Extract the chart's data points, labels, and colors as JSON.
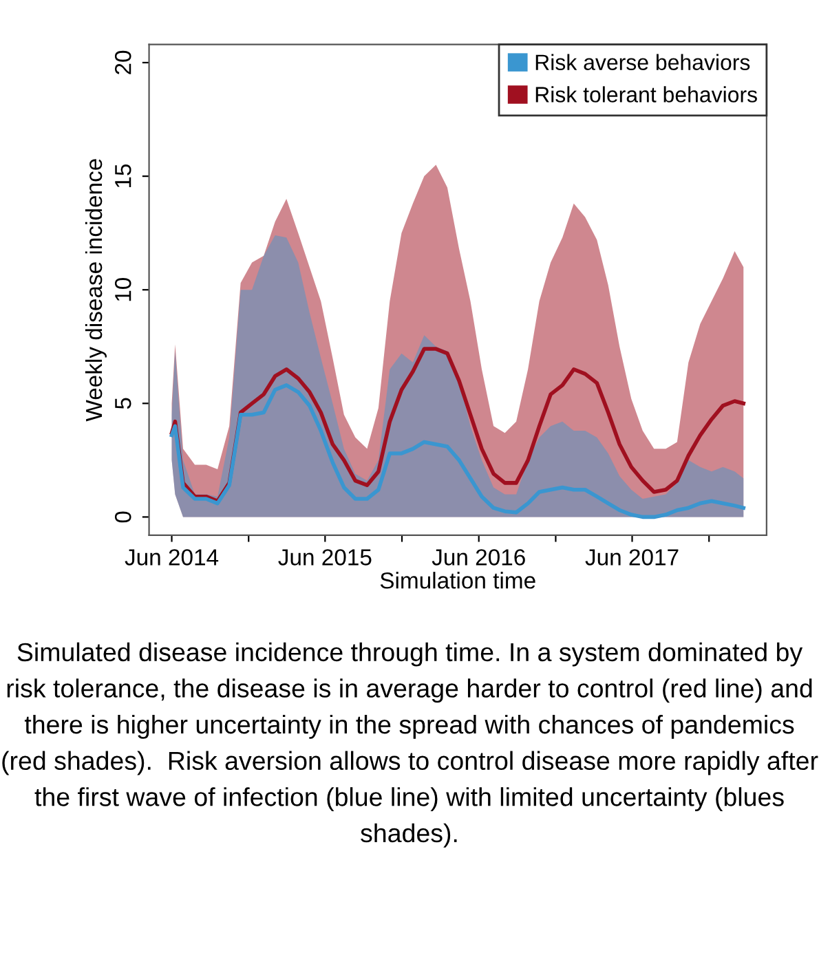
{
  "chart_data": {
    "type": "line",
    "xlabel": "Simulation time",
    "ylabel": "Weekly disease incidence",
    "x": [
      "2014-06-01",
      "2014-06-09",
      "2014-06-28",
      "2014-07-26",
      "2014-08-22",
      "2014-09-18",
      "2014-10-16",
      "2014-11-12",
      "2014-12-09",
      "2015-01-06",
      "2015-02-02",
      "2015-03-01",
      "2015-03-29",
      "2015-04-25",
      "2015-05-22",
      "2015-06-19",
      "2015-07-16",
      "2015-08-12",
      "2015-09-09",
      "2015-10-06",
      "2015-11-02",
      "2015-11-30",
      "2015-12-27",
      "2016-01-23",
      "2016-02-20",
      "2016-03-18",
      "2016-04-15",
      "2016-05-12",
      "2016-06-08",
      "2016-07-06",
      "2016-08-02",
      "2016-08-29",
      "2016-09-26",
      "2016-10-23",
      "2016-11-19",
      "2016-12-17",
      "2017-01-13",
      "2017-02-09",
      "2017-03-09",
      "2017-04-05",
      "2017-05-02",
      "2017-05-30",
      "2017-06-26",
      "2017-07-23",
      "2017-08-20",
      "2017-09-16",
      "2017-10-13",
      "2017-11-10",
      "2017-12-07",
      "2018-01-03",
      "2018-01-31",
      "2018-02-21"
    ],
    "series": [
      {
        "name": "Risk tolerant behaviors",
        "color": "#a01020",
        "values": [
          3.7,
          4.2,
          1.5,
          0.9,
          0.9,
          0.7,
          1.5,
          4.6,
          5.0,
          5.4,
          6.2,
          6.5,
          6.1,
          5.5,
          4.6,
          3.2,
          2.5,
          1.6,
          1.4,
          2.0,
          4.2,
          5.6,
          6.4,
          7.4,
          7.4,
          7.2,
          6.0,
          4.5,
          3.0,
          1.9,
          1.5,
          1.5,
          2.5,
          4.0,
          5.4,
          5.8,
          6.5,
          6.3,
          5.9,
          4.6,
          3.2,
          2.2,
          1.6,
          1.1,
          1.2,
          1.6,
          2.7,
          3.6,
          4.3,
          4.9,
          5.1,
          5.0
        ],
        "lower": [
          2.5,
          1.0,
          0,
          0,
          0,
          0,
          0,
          0,
          0,
          0,
          0,
          0,
          0,
          0,
          0,
          0,
          0,
          0,
          0,
          0,
          0,
          0,
          0,
          0,
          0,
          0,
          0,
          0,
          0,
          0,
          0,
          0,
          0,
          0,
          0,
          0,
          0,
          0,
          0,
          0,
          0,
          0,
          0,
          0,
          0,
          0,
          0,
          0,
          0,
          0,
          0,
          0
        ],
        "upper": [
          5.0,
          7.6,
          3.0,
          2.3,
          2.3,
          2.1,
          4.0,
          10.3,
          11.2,
          11.5,
          13.0,
          14.0,
          12.5,
          11.0,
          9.5,
          7.0,
          4.5,
          3.5,
          3.0,
          4.8,
          9.5,
          12.5,
          13.8,
          15.0,
          15.5,
          14.5,
          11.8,
          9.5,
          6.5,
          4.0,
          3.7,
          4.2,
          6.5,
          9.5,
          11.2,
          12.3,
          13.8,
          13.2,
          12.2,
          10.2,
          7.5,
          5.2,
          3.8,
          3.0,
          3.0,
          3.3,
          6.8,
          8.5,
          9.5,
          10.5,
          11.7,
          11.0
        ]
      },
      {
        "name": "Risk averse behaviors",
        "color": "#3a96d0",
        "values": [
          3.6,
          4.0,
          1.3,
          0.8,
          0.8,
          0.6,
          1.4,
          4.5,
          4.5,
          4.6,
          5.6,
          5.8,
          5.5,
          4.9,
          3.8,
          2.4,
          1.3,
          0.8,
          0.8,
          1.2,
          2.8,
          2.8,
          3.0,
          3.3,
          3.2,
          3.1,
          2.5,
          1.7,
          0.9,
          0.4,
          0.25,
          0.2,
          0.6,
          1.1,
          1.2,
          1.3,
          1.2,
          1.2,
          0.9,
          0.6,
          0.3,
          0.1,
          0.0,
          0.0,
          0.1,
          0.3,
          0.4,
          0.6,
          0.7,
          0.6,
          0.5,
          0.4
        ],
        "lower": [
          2.5,
          1.0,
          0,
          0,
          0,
          0,
          0,
          0,
          0,
          0,
          0,
          0,
          0,
          0,
          0,
          0,
          0,
          0,
          0,
          0,
          0,
          0,
          0,
          0,
          0,
          0,
          0,
          0,
          0,
          0,
          0,
          0,
          0,
          0,
          0,
          0,
          0,
          0,
          0,
          0,
          0,
          0,
          0,
          0,
          0,
          0,
          0,
          0,
          0,
          0,
          0,
          0
        ],
        "upper": [
          4.5,
          7.3,
          2.5,
          1.0,
          1.0,
          0.9,
          3.5,
          10.0,
          10.0,
          11.5,
          12.4,
          12.3,
          11.2,
          9.0,
          7.0,
          5.0,
          3.0,
          1.9,
          1.6,
          2.5,
          6.5,
          7.2,
          6.8,
          8.0,
          7.5,
          7.3,
          6.0,
          4.0,
          2.5,
          1.3,
          1.0,
          1.0,
          2.5,
          3.5,
          4.0,
          4.2,
          3.8,
          3.8,
          3.5,
          2.8,
          1.8,
          1.2,
          0.8,
          0.9,
          1.0,
          1.5,
          2.5,
          2.2,
          2.0,
          2.2,
          2.0,
          1.7
        ]
      }
    ],
    "xlim": [
      "2014-04-08",
      "2018-04-17"
    ],
    "xticks": [
      {
        "value": "2014-06-01",
        "label": "Jun 2014"
      },
      {
        "value": "2014-12-01",
        "label": null
      },
      {
        "value": "2015-06-01",
        "label": "Jun 2015"
      },
      {
        "value": "2015-12-01",
        "label": null
      },
      {
        "value": "2016-06-01",
        "label": "Jun 2016"
      },
      {
        "value": "2016-12-01",
        "label": null
      },
      {
        "value": "2017-06-01",
        "label": "Jun 2017"
      },
      {
        "value": "2017-12-01",
        "label": null
      }
    ],
    "ylim": [
      -0.8,
      20.8
    ],
    "yticks": [
      0,
      5,
      10,
      15,
      20
    ],
    "grid": false,
    "legend": "top right",
    "marker": "none",
    "line_style": "solid",
    "annotations": [
      "Simulated disease incidence through time. In a system dominated by risk tolerance, the disease is in average harder to control (red line) and there is higher uncertainty in the spread with chances of pandemics (red shades).  Risk aversion allows to control disease more rapidly after the first wave of infection (blue line) with limited uncertainty (blues shades)."
    ]
  }
}
